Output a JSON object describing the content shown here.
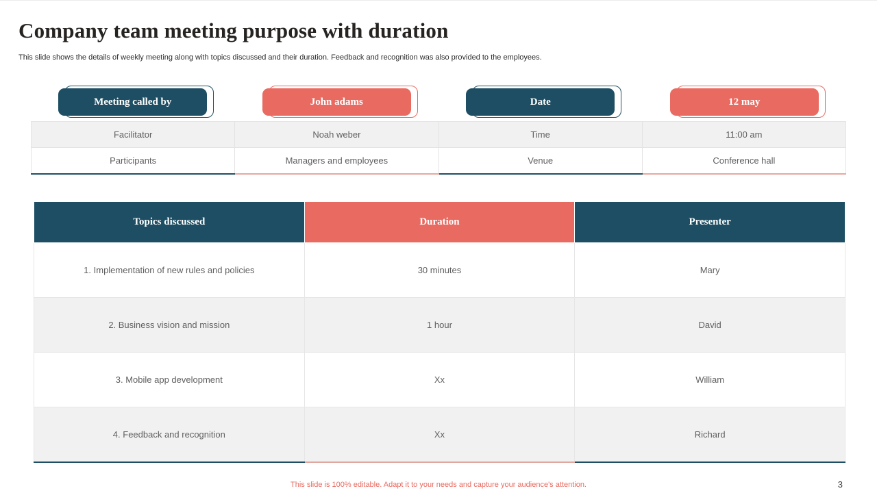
{
  "slide": {
    "title": "Company team meeting purpose with duration",
    "subtitle": "This slide shows the details of weekly meeting along with topics discussed and their duration. Feedback  and recognition was also provided to the employees.",
    "footer_note": "This slide is 100% editable. Adapt it to your needs and capture your audience's attention.",
    "page_number": "3"
  },
  "info_buttons": [
    {
      "label": "Meeting called by",
      "variant": "dark"
    },
    {
      "label": "John adams",
      "variant": "coral"
    },
    {
      "label": "Date",
      "variant": "dark"
    },
    {
      "label": "12 may",
      "variant": "coral"
    }
  ],
  "info_table": {
    "rows": [
      [
        "Facilitator",
        "Noah weber",
        "Time",
        "11:00 am"
      ],
      [
        "Participants",
        "Managers and employees",
        "Venue",
        "Conference hall"
      ]
    ]
  },
  "main_table": {
    "headers": [
      {
        "label": "Topics discussed",
        "variant": "dark"
      },
      {
        "label": "Duration",
        "variant": "coral"
      },
      {
        "label": "Presenter",
        "variant": "dark"
      }
    ],
    "rows": [
      [
        "1. Implementation of new rules and policies",
        "30 minutes",
        "Mary"
      ],
      [
        "2. Business vision and mission",
        "1 hour",
        "David"
      ],
      [
        "3. Mobile  app development",
        "Xx",
        "William"
      ],
      [
        "4. Feedback and recognition",
        "Xx",
        "Richard"
      ]
    ]
  },
  "colors": {
    "dark_blue": "#1d4e63",
    "coral": "#e96a60",
    "row_alt": "#f1f1f1",
    "cell_border": "#e3e3e3",
    "body_text": "#5f5f5f",
    "title_text": "#262321",
    "footer_text": "#e96a60"
  }
}
